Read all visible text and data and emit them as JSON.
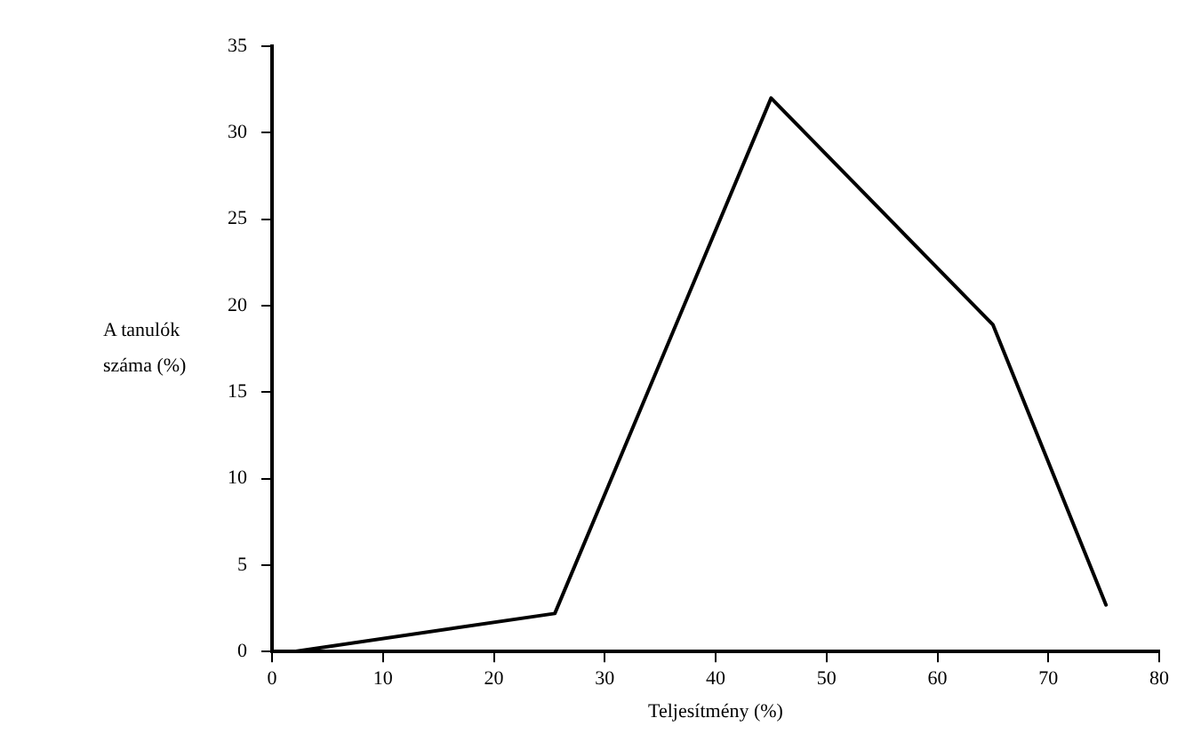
{
  "chart_data": {
    "type": "line",
    "xlabel": "Teljesítmény (%)",
    "ylabel": "A tanulók száma (%)",
    "x": [
      2,
      25.5,
      45,
      65,
      75.2
    ],
    "series": [
      {
        "color": "#000000",
        "values": [
          0,
          2.2,
          32,
          18.9,
          2.7
        ]
      }
    ],
    "xlim": [
      0,
      80
    ],
    "xticks": [
      0,
      10,
      20,
      30,
      40,
      50,
      60,
      70,
      80
    ],
    "ylim": [
      0,
      35
    ],
    "yticks": [
      0,
      5,
      10,
      15,
      20,
      25,
      30,
      35
    ],
    "grid": false,
    "legend": false,
    "marker": "none",
    "line_style": "solid"
  }
}
